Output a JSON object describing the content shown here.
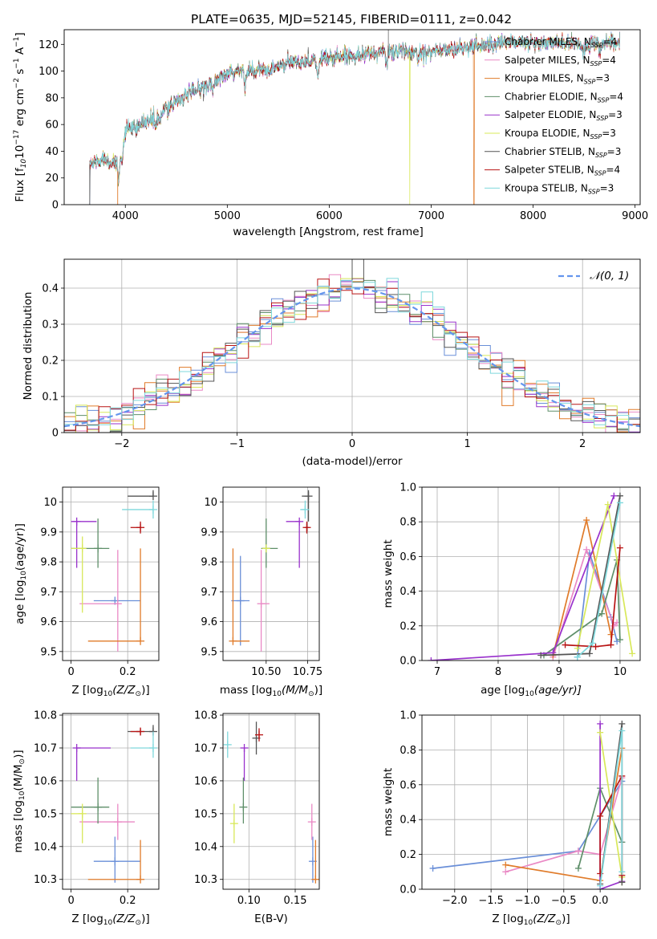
{
  "figure": {
    "title": "PLATE=0635, MJD=52145, FIBERID=0111, z=0.042"
  },
  "colors": {
    "chabrier_miles": "#6a8fd8",
    "salpeter_miles": "#ea89c5",
    "kroupa_miles": "#e07b2a",
    "chabrier_elodie": "#5f8f6a",
    "salpeter_elodie": "#9932cc",
    "kroupa_elodie": "#d8e85a",
    "chabrier_stelib": "#555555",
    "salpeter_stelib": "#b81414",
    "kroupa_stelib": "#7fd8dc",
    "normal": "#6495ed"
  },
  "chart_data": [
    {
      "id": "spectrum",
      "type": "line",
      "title": "PLATE=0635, MJD=52145, FIBERID=0111, z=0.042",
      "xlabel": "wavelength [Angstrom, rest frame]",
      "ylabel": "Flux [f",
      "ylabel_unit": "10",
      "ylabel_units_tail": " erg cm",
      "ylabel_tail": " s",
      "ylabel_end": " A",
      "ylabel_exp1": "−17",
      "ylabel_exp2": "−2",
      "ylabel_exp3": "−1",
      "ylabel_close": "]",
      "xlim": [
        3400,
        9050
      ],
      "ylim": [
        0,
        131
      ],
      "xticks": [
        4000,
        5000,
        6000,
        7000,
        8000,
        9000
      ],
      "yticks": [
        0,
        20,
        40,
        60,
        80,
        100,
        120
      ],
      "continuum_x": [
        3650,
        3800,
        3930,
        4000,
        4200,
        4300,
        4500,
        4800,
        5000,
        5200,
        5400,
        5600,
        5800,
        6000,
        6200,
        6400,
        6600,
        6800,
        7000,
        7200,
        7400,
        7600,
        7800,
        8000,
        8200,
        8400,
        8600,
        8800
      ],
      "continuum_y": [
        30,
        35,
        30,
        55,
        62,
        65,
        78,
        90,
        97,
        102,
        100,
        106,
        108,
        110,
        112,
        113,
        115,
        114,
        115,
        116,
        118,
        121,
        122,
        121,
        121,
        120,
        120,
        121
      ],
      "legend_position": "upper right",
      "legend": [
        {
          "name": "Chabrier MILES, N",
          "n": "4",
          "color_key": "chabrier_miles"
        },
        {
          "name": "Salpeter MILES, N",
          "n": "4",
          "color_key": "salpeter_miles"
        },
        {
          "name": "Kroupa MILES, N",
          "n": "3",
          "color_key": "kroupa_miles"
        },
        {
          "name": "Chabrier ELODIE, N",
          "n": "4",
          "color_key": "chabrier_elodie"
        },
        {
          "name": "Salpeter ELODIE, N",
          "n": "3",
          "color_key": "salpeter_elodie"
        },
        {
          "name": "Kroupa ELODIE, N",
          "n": "3",
          "color_key": "kroupa_elodie"
        },
        {
          "name": "Chabrier STELIB, N",
          "n": "3",
          "color_key": "chabrier_stelib"
        },
        {
          "name": "Salpeter STELIB, N",
          "n": "4",
          "color_key": "salpeter_stelib"
        },
        {
          "name": "Kroupa STELIB, N",
          "n": "3",
          "color_key": "kroupa_stelib"
        }
      ],
      "legend_sub": "SSP",
      "legend_eq": "="
    },
    {
      "id": "residuals",
      "type": "histogram",
      "xlabel": "(data-model)/error",
      "ylabel": "Normed distribution",
      "xlim": [
        -2.5,
        2.5
      ],
      "ylim": [
        0,
        0.48
      ],
      "xticks": [
        -2,
        -1,
        0,
        1,
        2
      ],
      "yticks": [
        0,
        0.1,
        0.2,
        0.3,
        0.4
      ],
      "grid": true,
      "bin_width": 0.1,
      "reference_label": "𝒩(0, 1)",
      "legend_position": "upper right"
    },
    {
      "id": "age_vs_Z",
      "type": "errorbar",
      "xlabel": "Z [log",
      "xlabel_sub": "10",
      "xlabel_tail": "(Z/Z",
      "xlabel_sun": "⊙",
      "xlabel_end": ")]",
      "ylabel": "age  [log",
      "ylabel_sub": "10",
      "ylabel_tail": "(age/yr)]",
      "xlim": [
        -0.03,
        0.31
      ],
      "ylim": [
        9.47,
        10.05
      ],
      "xticks": [
        0.0,
        0.2
      ],
      "yticks": [
        9.5,
        9.6,
        9.7,
        9.8,
        9.9,
        10.0
      ],
      "grid": true,
      "points": [
        {
          "key": "chabrier_miles",
          "x": 0.155,
          "xerr": [
            0.075,
            0.09
          ],
          "y": 9.67,
          "yerr": [
            0.0,
            0.0
          ]
        },
        {
          "key": "salpeter_miles",
          "x": 0.165,
          "xerr": [
            0.135,
            0.0
          ],
          "y": 9.66,
          "yerr": [
            0.16,
            0.18
          ]
        },
        {
          "key": "kroupa_miles",
          "x": 0.245,
          "xerr": [
            0.185,
            0.0
          ],
          "y": 9.535,
          "yerr": [
            0.0,
            0.31
          ]
        },
        {
          "key": "chabrier_elodie",
          "x": 0.095,
          "xerr": [
            0.095,
            0.04
          ],
          "y": 9.845,
          "yerr": [
            0.065,
            0.1
          ]
        },
        {
          "key": "salpeter_elodie",
          "x": 0.02,
          "xerr": [
            0.02,
            0.07
          ],
          "y": 9.935,
          "yerr": [
            0.155,
            0.0
          ]
        },
        {
          "key": "kroupa_elodie",
          "x": 0.04,
          "xerr": [
            0.04,
            0.0
          ],
          "y": 9.845,
          "yerr": [
            0.215,
            0.04
          ]
        },
        {
          "key": "chabrier_stelib",
          "x": 0.29,
          "xerr": [
            0.09,
            0.0
          ],
          "y": 10.02,
          "yerr": [
            0.0,
            0.02
          ]
        },
        {
          "key": "salpeter_stelib",
          "x": 0.245,
          "xerr": [
            0.035,
            0.0
          ],
          "y": 9.915,
          "yerr": [
            0.02,
            0.02
          ]
        },
        {
          "key": "kroupa_stelib",
          "x": 0.29,
          "xerr": [
            0.11,
            0.0
          ],
          "y": 9.975,
          "yerr": [
            0.03,
            0.03
          ]
        }
      ]
    },
    {
      "id": "age_vs_mass",
      "type": "errorbar",
      "xlabel": "mass [log",
      "xlabel_sub": "10",
      "xlabel_tail": "(M/M",
      "xlabel_sun": "⊙",
      "xlabel_end": ")]",
      "xlim": [
        10.24,
        10.82
      ],
      "ylim": [
        9.47,
        10.05
      ],
      "xticks": [
        10.5,
        10.75
      ],
      "xtick_labels": [
        "10.50",
        "10.75"
      ],
      "yticks": [
        9.5,
        9.6,
        9.7,
        9.8,
        9.9,
        10.0
      ],
      "grid": true,
      "points": [
        {
          "key": "chabrier_miles",
          "x": 10.345,
          "xerr": [
            0.055,
            0.055
          ],
          "y": 9.67,
          "yerr": [
            0.15,
            0.15
          ]
        },
        {
          "key": "salpeter_miles",
          "x": 10.47,
          "xerr": [
            0.0,
            0.05
          ],
          "y": 9.66,
          "yerr": [
            0.16,
            0.18
          ]
        },
        {
          "key": "kroupa_miles",
          "x": 10.3,
          "xerr": [
            0.0,
            0.1
          ],
          "y": 9.535,
          "yerr": [
            0.0,
            0.31
          ]
        },
        {
          "key": "chabrier_elodie",
          "x": 10.5,
          "xerr": [
            0.03,
            0.07
          ],
          "y": 9.845,
          "yerr": [
            0.065,
            0.1
          ]
        },
        {
          "key": "salpeter_elodie",
          "x": 10.7,
          "xerr": [
            0.08,
            0.0
          ],
          "y": 9.935,
          "yerr": [
            0.155,
            0.0
          ]
        },
        {
          "key": "kroupa_elodie",
          "x": 10.5,
          "xerr": [
            0.0,
            0.0
          ],
          "y": 9.845,
          "yerr": [
            0.0,
            0.0
          ]
        },
        {
          "key": "chabrier_stelib",
          "x": 10.755,
          "xerr": [
            0.04,
            0.0
          ],
          "y": 10.02,
          "yerr": [
            0.085,
            0.02
          ]
        },
        {
          "key": "salpeter_stelib",
          "x": 10.745,
          "xerr": [
            0.01,
            0.01
          ],
          "y": 9.915,
          "yerr": [
            0.02,
            0.02
          ]
        },
        {
          "key": "kroupa_stelib",
          "x": 10.735,
          "xerr": [
            0.03,
            0.0
          ],
          "y": 9.975,
          "yerr": [
            0.03,
            0.03
          ]
        }
      ]
    },
    {
      "id": "sfh_age",
      "type": "line",
      "xlabel": "age  [log",
      "xlabel_sub": "10",
      "xlabel_tail": "(age/yr)]",
      "ylabel": "mass weight",
      "xlim": [
        6.75,
        10.33
      ],
      "ylim": [
        0,
        1.0
      ],
      "xticks": [
        7,
        8,
        9,
        10
      ],
      "yticks": [
        0,
        0.2,
        0.4,
        0.6,
        0.8,
        1.0
      ],
      "ytick_labels": [
        "0.0",
        "0.2",
        "0.4",
        "0.6",
        "0.8",
        "1.0"
      ],
      "grid": true,
      "series": [
        {
          "key": "chabrier_miles",
          "x": [
            9.3,
            9.5,
            9.85,
            9.95
          ],
          "y": [
            0.02,
            0.62,
            0.25,
            0.11
          ]
        },
        {
          "key": "salpeter_miles",
          "x": [
            8.9,
            9.45,
            9.9,
            9.95
          ],
          "y": [
            0.02,
            0.64,
            0.2,
            0.22
          ]
        },
        {
          "key": "kroupa_miles",
          "x": [
            8.9,
            9.45,
            9.85
          ],
          "y": [
            0.03,
            0.81,
            0.15
          ]
        },
        {
          "key": "chabrier_elodie",
          "x": [
            8.75,
            9.7,
            9.95,
            10.0
          ],
          "y": [
            0.03,
            0.27,
            0.58,
            0.12
          ]
        },
        {
          "key": "salpeter_elodie",
          "x": [
            6.9,
            8.9,
            9.9
          ],
          "y": [
            0.0,
            0.045,
            0.95
          ]
        },
        {
          "key": "kroupa_elodie",
          "x": [
            9.3,
            9.8,
            10.2
          ],
          "y": [
            0.07,
            0.9,
            0.04
          ]
        },
        {
          "key": "chabrier_stelib",
          "x": [
            8.7,
            9.5,
            10.0
          ],
          "y": [
            0.03,
            0.04,
            0.95
          ]
        },
        {
          "key": "salpeter_stelib",
          "x": [
            9.1,
            9.6,
            9.85,
            10.0
          ],
          "y": [
            0.09,
            0.08,
            0.09,
            0.65
          ]
        },
        {
          "key": "kroupa_stelib",
          "x": [
            9.3,
            9.55,
            10.0
          ],
          "y": [
            0.02,
            0.1,
            0.91
          ]
        }
      ]
    },
    {
      "id": "mass_vs_Z",
      "type": "errorbar",
      "xlabel": "Z [log",
      "xlabel_sub": "10",
      "xlabel_tail": "(Z/Z",
      "xlabel_sun": "⊙",
      "xlabel_end": ")]",
      "ylabel": "mass [log",
      "ylabel_sub": "10",
      "ylabel_tail": "(M/M",
      "ylabel_sun": "⊙",
      "ylabel_end": ")]",
      "xlim": [
        -0.03,
        0.31
      ],
      "ylim": [
        10.27,
        10.805
      ],
      "xticks": [
        0.0,
        0.2
      ],
      "yticks": [
        10.3,
        10.4,
        10.5,
        10.6,
        10.7,
        10.8
      ],
      "grid": true,
      "points": [
        {
          "key": "chabrier_miles",
          "x": 0.155,
          "xerr": [
            0.075,
            0.09
          ],
          "y": 10.355,
          "yerr": [
            0.065,
            0.075
          ]
        },
        {
          "key": "salpeter_miles",
          "x": 0.165,
          "xerr": [
            0.135,
            0.06
          ],
          "y": 10.475,
          "yerr": [
            0.055,
            0.055
          ]
        },
        {
          "key": "kroupa_miles",
          "x": 0.245,
          "xerr": [
            0.185,
            0.0
          ],
          "y": 10.3,
          "yerr": [
            0.0,
            0.12
          ]
        },
        {
          "key": "chabrier_elodie",
          "x": 0.095,
          "xerr": [
            0.095,
            0.04
          ],
          "y": 10.52,
          "yerr": [
            0.05,
            0.09
          ]
        },
        {
          "key": "salpeter_elodie",
          "x": 0.02,
          "xerr": [
            0.0,
            0.12
          ],
          "y": 10.7,
          "yerr": [
            0.1,
            0.0
          ]
        },
        {
          "key": "kroupa_elodie",
          "x": 0.04,
          "xerr": [
            0.04,
            0.0
          ],
          "y": 10.5,
          "yerr": [
            0.09,
            0.03
          ]
        },
        {
          "key": "chabrier_stelib",
          "x": 0.29,
          "xerr": [
            0.09,
            0.0
          ],
          "y": 10.75,
          "yerr": [
            0.0,
            0.02
          ]
        },
        {
          "key": "salpeter_stelib",
          "x": 0.245,
          "xerr": [
            0.035,
            0.0
          ],
          "y": 10.75,
          "yerr": [
            0.01,
            0.01
          ]
        },
        {
          "key": "kroupa_stelib",
          "x": 0.29,
          "xerr": [
            0.08,
            0.0
          ],
          "y": 10.7,
          "yerr": [
            0.03,
            0.05
          ]
        }
      ]
    },
    {
      "id": "mass_vs_ebv",
      "type": "errorbar",
      "xlabel": "E(B-V)",
      "xlim": [
        0.072,
        0.176
      ],
      "ylim": [
        10.27,
        10.805
      ],
      "xticks": [
        0.1,
        0.15
      ],
      "xtick_labels": [
        "0.10",
        "0.15"
      ],
      "yticks": [
        10.3,
        10.4,
        10.5,
        10.6,
        10.7,
        10.8
      ],
      "grid": true,
      "points": [
        {
          "key": "chabrier_miles",
          "x": 0.169,
          "y": 10.355,
          "yerr": [
            0.065,
            0.075
          ]
        },
        {
          "key": "salpeter_miles",
          "x": 0.168,
          "y": 10.475,
          "yerr": [
            0.055,
            0.055
          ]
        },
        {
          "key": "kroupa_miles",
          "x": 0.172,
          "y": 10.3,
          "yerr": [
            0.0,
            0.12
          ]
        },
        {
          "key": "chabrier_elodie",
          "x": 0.094,
          "y": 10.52,
          "yerr": [
            0.05,
            0.09
          ]
        },
        {
          "key": "salpeter_elodie",
          "x": 0.095,
          "y": 10.7,
          "yerr": [
            0.1,
            0.0
          ]
        },
        {
          "key": "kroupa_elodie",
          "x": 0.084,
          "y": 10.47,
          "yerr": [
            0.06,
            0.06
          ]
        },
        {
          "key": "chabrier_stelib",
          "x": 0.108,
          "y": 10.73,
          "yerr": [
            0.05,
            0.05
          ]
        },
        {
          "key": "salpeter_stelib",
          "x": 0.111,
          "y": 10.74,
          "yerr": [
            0.02,
            0.02
          ]
        },
        {
          "key": "kroupa_stelib",
          "x": 0.077,
          "y": 10.71,
          "yerr": [
            0.04,
            0.04
          ]
        }
      ]
    },
    {
      "id": "sfh_Z",
      "type": "line",
      "xlabel": "Z [log",
      "xlabel_sub": "10",
      "xlabel_tail": "(Z/Z",
      "xlabel_sun": "⊙",
      "xlabel_end": ")]",
      "ylabel": "mass weight",
      "xlim": [
        -2.45,
        0.55
      ],
      "ylim": [
        0,
        1.0
      ],
      "xticks": [
        -2.0,
        -1.5,
        -1.0,
        -0.5,
        0.0
      ],
      "xtick_labels": [
        "−2.0",
        "−1.5",
        "−1.0",
        "−0.5",
        "0.0"
      ],
      "yticks": [
        0,
        0.2,
        0.4,
        0.6,
        0.8,
        1.0
      ],
      "ytick_labels": [
        "0.0",
        "0.2",
        "0.4",
        "0.6",
        "0.8",
        "1.0"
      ],
      "grid": true,
      "series": [
        {
          "key": "chabrier_miles",
          "x": [
            -2.3,
            -0.3,
            0.3,
            0.3
          ],
          "y": [
            0.12,
            0.22,
            0.62,
            0.27
          ]
        },
        {
          "key": "salpeter_miles",
          "x": [
            -1.3,
            -0.3,
            0.0,
            0.3
          ],
          "y": [
            0.1,
            0.22,
            0.2,
            0.64
          ]
        },
        {
          "key": "kroupa_miles",
          "x": [
            -1.3,
            0.0,
            0.3
          ],
          "y": [
            0.14,
            0.05,
            0.81
          ]
        },
        {
          "key": "chabrier_elodie",
          "x": [
            -0.3,
            0.0,
            0.3
          ],
          "y": [
            0.12,
            0.58,
            0.27
          ]
        },
        {
          "key": "salpeter_elodie",
          "x": [
            0.0,
            0.0,
            0.3
          ],
          "y": [
            0.95,
            0.0,
            0.045
          ]
        },
        {
          "key": "kroupa_elodie",
          "x": [
            0.0,
            0.3,
            0.3
          ],
          "y": [
            0.9,
            0.07,
            0.04
          ]
        },
        {
          "key": "chabrier_stelib",
          "x": [
            0.0,
            0.3,
            0.3
          ],
          "y": [
            0.03,
            0.95,
            0.04
          ]
        },
        {
          "key": "salpeter_stelib",
          "x": [
            0.0,
            0.0,
            0.3,
            0.3
          ],
          "y": [
            0.09,
            0.42,
            0.65,
            0.08
          ]
        },
        {
          "key": "kroupa_stelib",
          "x": [
            0.0,
            0.3,
            0.3
          ],
          "y": [
            0.02,
            0.91,
            0.1
          ]
        }
      ]
    }
  ]
}
